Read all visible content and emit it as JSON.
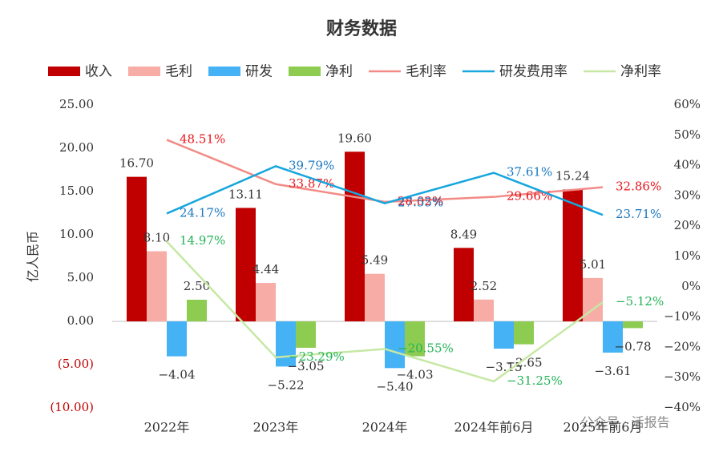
{
  "chart_data": {
    "type": "combo",
    "title": "财务数据",
    "y_label": "亿人民币",
    "footer": "公众号 · 活报告",
    "categories": [
      "2022年",
      "2023年",
      "2024年",
      "2024年前6月",
      "2025年前6月"
    ],
    "series": [
      {
        "name": "收入",
        "type": "bar",
        "color": "#c00000",
        "label_color": "#333333",
        "values": [
          16.7,
          13.11,
          19.6,
          8.49,
          15.24
        ],
        "value_labels": [
          "16.70",
          "13.11",
          "19.60",
          "8.49",
          "15.24"
        ]
      },
      {
        "name": "毛利",
        "type": "bar",
        "color": "#f8aca6",
        "label_color": "#333333",
        "values": [
          8.1,
          4.44,
          5.49,
          2.52,
          5.01
        ],
        "value_labels": [
          "8.10",
          "4.44",
          "5.49",
          "2.52",
          "5.01"
        ]
      },
      {
        "name": "研发",
        "type": "bar",
        "color": "#45b2f5",
        "label_color": "#333333",
        "values": [
          -4.04,
          -5.22,
          -5.4,
          -3.15,
          -3.61
        ],
        "value_labels": [
          "−4.04",
          "−5.22",
          "−5.40",
          "−3.15",
          "−3.61"
        ]
      },
      {
        "name": "净利",
        "type": "bar",
        "color": "#8dcc50",
        "label_color": "#333333",
        "values": [
          2.5,
          -3.05,
          -4.03,
          -2.65,
          -0.78
        ],
        "value_labels": [
          "2.50",
          "−3.05",
          "−4.03",
          "−2.65",
          "−0.78"
        ]
      },
      {
        "name": "毛利率",
        "type": "line",
        "axis": "y2",
        "color": "#f28b86",
        "label_color": "#e8151b",
        "values": [
          48.51,
          33.87,
          28.02,
          29.66,
          32.86
        ],
        "value_labels": [
          "48.51%",
          "33.87%",
          "28.02%",
          "29.66%",
          "32.86%"
        ]
      },
      {
        "name": "研发费用率",
        "type": "line",
        "axis": "y2",
        "color": "#17a6de",
        "label_color": "#1a78c2",
        "values": [
          24.17,
          39.79,
          27.55,
          37.61,
          23.71
        ],
        "value_labels": [
          "24.17%",
          "39.79%",
          "27.55%",
          "37.61%",
          "23.71%"
        ]
      },
      {
        "name": "净利率",
        "type": "line",
        "axis": "y2",
        "color": "#c6e8a4",
        "label_color": "#22b357",
        "values": [
          14.97,
          -23.29,
          -20.55,
          -31.25,
          -5.12
        ],
        "value_labels": [
          "14.97%",
          "−23.29%",
          "−20.55%",
          "−31.25%",
          "−5.12%"
        ]
      }
    ],
    "ylim": [
      -10,
      25
    ],
    "yticks": [
      {
        "value": -10,
        "label": "(10.00)"
      },
      {
        "value": -5,
        "label": "(5.00)"
      },
      {
        "value": 0,
        "label": "0.00"
      },
      {
        "value": 5,
        "label": "5.00"
      },
      {
        "value": 10,
        "label": "10.00"
      },
      {
        "value": 15,
        "label": "15.00"
      },
      {
        "value": 20,
        "label": "20.00"
      },
      {
        "value": 25,
        "label": "25.00"
      }
    ],
    "ytick_negative_color": "#c00000",
    "y2lim": [
      -40,
      60
    ],
    "y2ticks": [
      {
        "value": -40,
        "label": "−40%"
      },
      {
        "value": -30,
        "label": "−30%"
      },
      {
        "value": -20,
        "label": "−20%"
      },
      {
        "value": -10,
        "label": "−10%"
      },
      {
        "value": 0,
        "label": "0%"
      },
      {
        "value": 10,
        "label": "10%"
      },
      {
        "value": 20,
        "label": "20%"
      },
      {
        "value": 30,
        "label": "30%"
      },
      {
        "value": 40,
        "label": "40%"
      },
      {
        "value": 50,
        "label": "50%"
      },
      {
        "value": 60,
        "label": "60%"
      }
    ],
    "grid": false
  }
}
